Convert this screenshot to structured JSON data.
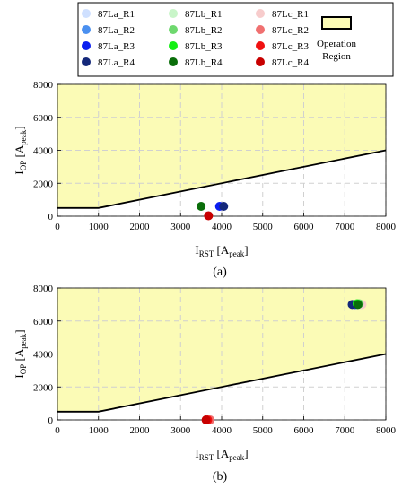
{
  "legend": {
    "entries": [
      {
        "name": "87La_R1",
        "color": "#cfe0ff"
      },
      {
        "name": "87Lb_R1",
        "color": "#c8f5c8"
      },
      {
        "name": "87Lc_R1",
        "color": "#f7cccc"
      },
      {
        "name": "87La_R2",
        "color": "#4a90f0"
      },
      {
        "name": "87Lb_R2",
        "color": "#6ed86e"
      },
      {
        "name": "87Lc_R2",
        "color": "#f07070"
      },
      {
        "name": "87La_R3",
        "color": "#0a1ef0"
      },
      {
        "name": "87Lb_R3",
        "color": "#14f014"
      },
      {
        "name": "87Lc_R3",
        "color": "#f01010"
      },
      {
        "name": "87La_R4",
        "color": "#14287a"
      },
      {
        "name": "87Lb_R4",
        "color": "#0a6e0a"
      },
      {
        "name": "87Lc_R4",
        "color": "#c80000"
      }
    ],
    "region_label_1": "Operation",
    "region_label_2": "Region",
    "region_color": "#fbfbb6"
  },
  "chart_data": [
    {
      "type": "scatter",
      "caption": "(a)",
      "xlabel_main": "I",
      "xlabel_sub": "RST",
      "xlabel_rest": "[A",
      "xlabel_unit_sub": "peak",
      "xlabel_close": "]",
      "ylabel_main": "I",
      "ylabel_sub": "OP",
      "ylabel_rest": "[A",
      "ylabel_unit_sub": "peak",
      "ylabel_close": "]",
      "xlim": [
        0,
        8000
      ],
      "ylim": [
        0,
        8000
      ],
      "xticks": [
        "0",
        "1000",
        "2000",
        "3000",
        "4000",
        "5000",
        "6000",
        "7000",
        "8000"
      ],
      "yticks": [
        "0",
        "2000",
        "4000",
        "6000",
        "8000"
      ],
      "grid": true,
      "boundary": [
        [
          0,
          500
        ],
        [
          1000,
          500
        ],
        [
          8000,
          4000
        ]
      ],
      "points": [
        {
          "series": "87La_R3",
          "x": 3950,
          "y": 600
        },
        {
          "series": "87La_R4",
          "x": 4050,
          "y": 600
        },
        {
          "series": "87Lb_R4",
          "x": 3500,
          "y": 600
        },
        {
          "series": "87Lc_R4",
          "x": 3680,
          "y": 30
        }
      ]
    },
    {
      "type": "scatter",
      "caption": "(b)",
      "xlabel_main": "I",
      "xlabel_sub": "RST",
      "xlabel_rest": "[A",
      "xlabel_unit_sub": "peak",
      "xlabel_close": "]",
      "ylabel_main": "I",
      "ylabel_sub": "OP",
      "ylabel_rest": "[A",
      "ylabel_unit_sub": "peak",
      "ylabel_close": "]",
      "xlim": [
        0,
        8000
      ],
      "ylim": [
        0,
        8000
      ],
      "xticks": [
        "0",
        "1000",
        "2000",
        "3000",
        "4000",
        "5000",
        "6000",
        "7000",
        "8000"
      ],
      "yticks": [
        "0",
        "2000",
        "4000",
        "6000",
        "8000"
      ],
      "grid": true,
      "boundary": [
        [
          0,
          500
        ],
        [
          1000,
          500
        ],
        [
          8000,
          4000
        ]
      ],
      "points": [
        {
          "series": "87La_R1",
          "x": 7400,
          "y": 7000
        },
        {
          "series": "87Lb_R1",
          "x": 7380,
          "y": 7000
        },
        {
          "series": "87Lc_R1",
          "x": 7420,
          "y": 7000
        },
        {
          "series": "87La_R2",
          "x": 7300,
          "y": 7000
        },
        {
          "series": "87La_R3",
          "x": 7250,
          "y": 7000
        },
        {
          "series": "87La_R4",
          "x": 7180,
          "y": 7000
        },
        {
          "series": "87Lb_R2",
          "x": 7350,
          "y": 7050
        },
        {
          "series": "87Lb_R3",
          "x": 7300,
          "y": 7050
        },
        {
          "series": "87Lb_R4",
          "x": 7320,
          "y": 7000
        },
        {
          "series": "87Lc_R2",
          "x": 3720,
          "y": 0
        },
        {
          "series": "87Lc_R3",
          "x": 3660,
          "y": 0
        },
        {
          "series": "87Lc_R4",
          "x": 3620,
          "y": 0
        }
      ]
    }
  ]
}
